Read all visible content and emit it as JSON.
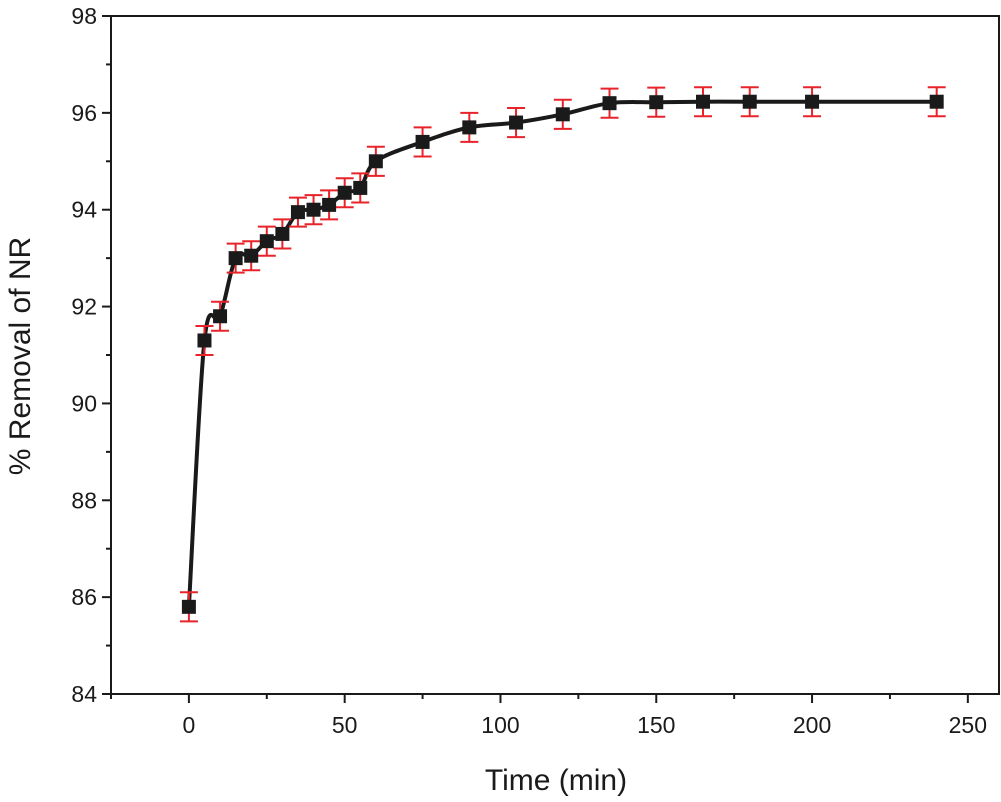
{
  "chart_data": {
    "type": "line",
    "title": "",
    "xlabel": "Time (min)",
    "ylabel": "% Removal of NR",
    "xlim": [
      -25,
      260
    ],
    "ylim": [
      84,
      98
    ],
    "xticks": [
      0,
      50,
      100,
      150,
      200,
      250
    ],
    "yticks": [
      84,
      86,
      88,
      90,
      92,
      94,
      96,
      98
    ],
    "xtick_labels": [
      "0",
      "50",
      "100",
      "150",
      "200",
      "250"
    ],
    "ytick_labels": [
      "84",
      "86",
      "88",
      "90",
      "92",
      "94",
      "96",
      "98"
    ],
    "grid": false,
    "marker": "square",
    "colors": {
      "line": "#1a1a1a",
      "marker": "#1a1a1a",
      "error_bar": "#e8232a",
      "axis": "#1a1a1a"
    },
    "series": [
      {
        "name": "% Removal of NR",
        "x": [
          0,
          5,
          10,
          15,
          20,
          25,
          30,
          35,
          40,
          45,
          50,
          55,
          60,
          75,
          90,
          105,
          120,
          135,
          150,
          165,
          180,
          200,
          240
        ],
        "y": [
          85.8,
          91.3,
          91.8,
          93.0,
          93.05,
          93.35,
          93.5,
          93.95,
          94.0,
          94.1,
          94.35,
          94.45,
          95.0,
          95.4,
          95.7,
          95.8,
          95.97,
          96.2,
          96.22,
          96.23,
          96.23,
          96.23,
          96.23
        ],
        "error": [
          0.3,
          0.3,
          0.3,
          0.3,
          0.3,
          0.3,
          0.3,
          0.3,
          0.3,
          0.3,
          0.3,
          0.3,
          0.3,
          0.3,
          0.3,
          0.3,
          0.3,
          0.3,
          0.3,
          0.3,
          0.3,
          0.3,
          0.3
        ]
      }
    ]
  }
}
